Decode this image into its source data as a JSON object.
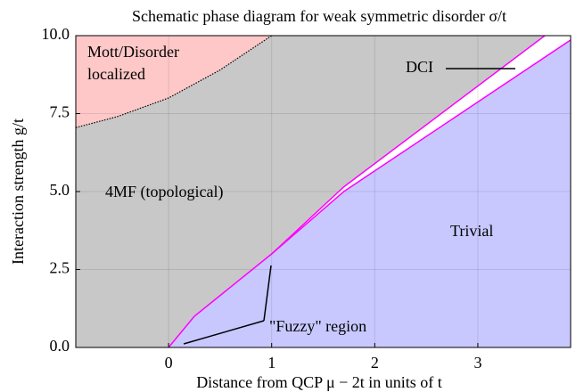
{
  "chart_data": {
    "type": "phase",
    "title": "Schematic phase diagram for weak symmetric disorder σ/t",
    "x_label": "Distance from QCP μ − 2t in units of t",
    "y_label": "Interaction strength g/t",
    "xlim": [
      -0.9,
      3.9
    ],
    "ylim": [
      0,
      10
    ],
    "xticks": [
      0,
      1,
      2,
      3
    ],
    "yticks": [
      {
        "value": 0,
        "label": "0.0"
      },
      {
        "value": 2.5,
        "label": "2.5"
      },
      {
        "value": 5,
        "label": "5.0"
      },
      {
        "value": 7.5,
        "label": "7.5"
      },
      {
        "value": 10,
        "label": "10.0"
      }
    ],
    "grid": true,
    "background_region": {
      "name": "4MF (topological)",
      "color": "#c8c8c8"
    },
    "series": [
      {
        "name": "Mott/Disorder localized",
        "color": "#ffc8c8",
        "fill": "above",
        "line_color": "#000000",
        "line_style": "dotted",
        "x": [
          -0.9,
          -0.5,
          0,
          0.5,
          1.0
        ],
        "values": [
          7.05,
          7.4,
          8.0,
          8.9,
          10
        ]
      },
      {
        "name": "DCI",
        "color": "#ffffff",
        "fill": "below",
        "line_color": "#ff00ff",
        "line_style": "solid",
        "x": [
          1.0,
          1.7,
          3.65
        ],
        "values": [
          3.0,
          5.15,
          10
        ]
      },
      {
        "name": "Trivial",
        "color": "#c8c8ff",
        "fill": "below",
        "line_color": "#ff00ff",
        "line_style": "solid",
        "x": [
          0,
          0.25,
          1.0,
          1.7,
          3.9
        ],
        "values": [
          0,
          1.0,
          3.0,
          5.0,
          9.86
        ]
      }
    ],
    "annotation": "\"Fuzzy\" region"
  }
}
